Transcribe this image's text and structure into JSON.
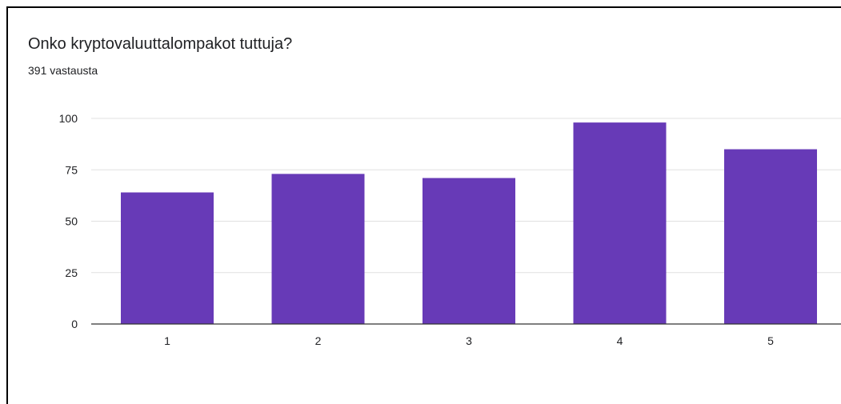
{
  "header": {
    "title": "Onko kryptovaluuttalompakot tuttuja?",
    "subtitle": "391 vastausta"
  },
  "colors": {
    "bar": "#673AB7",
    "gridline": "#E0E0E0",
    "axis": "#333333"
  },
  "chart_data": {
    "type": "bar",
    "categories": [
      "1",
      "2",
      "3",
      "4",
      "5"
    ],
    "values": [
      64,
      73,
      71,
      98,
      85
    ],
    "title": "",
    "xlabel": "",
    "ylabel": "",
    "ylim": [
      0,
      100
    ],
    "yticks": [
      0,
      25,
      50,
      75,
      100
    ],
    "grid": true,
    "legend": "none"
  }
}
